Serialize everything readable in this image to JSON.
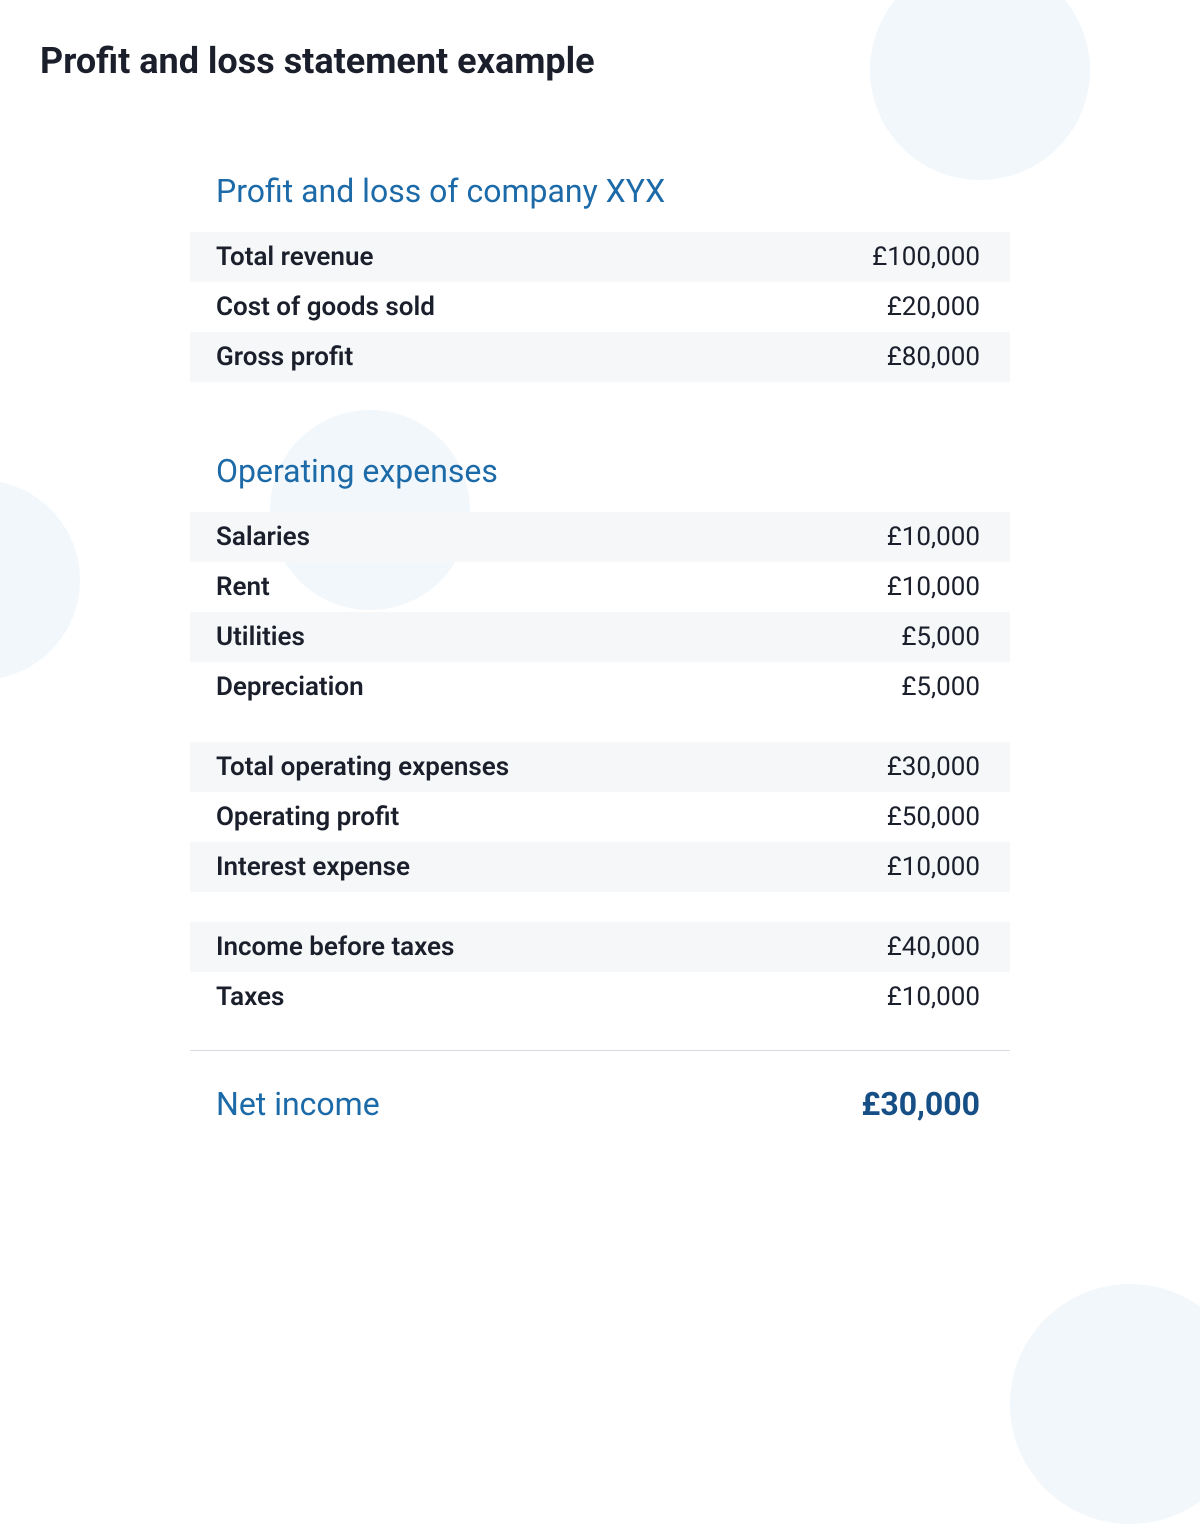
{
  "colors": {
    "heading_blue": "#1c6aa8",
    "text_dark": "#1a1f2b",
    "row_shade": "#f5f7f9",
    "divider": "#d6dbe1",
    "bg_circle": "#f2f7fb",
    "net_value": "#164f86"
  },
  "page_title": "Profit and loss statement example",
  "section1": {
    "title": "Profit and loss of company XYX",
    "rows": [
      {
        "label": "Total revenue",
        "value": "£100,000",
        "shaded": true
      },
      {
        "label": "Cost of goods sold",
        "value": "£20,000",
        "shaded": false
      },
      {
        "label": "Gross profit",
        "value": "£80,000",
        "shaded": true
      }
    ]
  },
  "section2": {
    "title": "Operating expenses",
    "group_a": [
      {
        "label": "Salaries",
        "value": "£10,000",
        "shaded": true
      },
      {
        "label": "Rent",
        "value": "£10,000",
        "shaded": false
      },
      {
        "label": "Utilities",
        "value": "£5,000",
        "shaded": true
      },
      {
        "label": "Depreciation",
        "value": "£5,000",
        "shaded": false
      }
    ],
    "group_b": [
      {
        "label": "Total operating expenses",
        "value": "£30,000",
        "shaded": true
      },
      {
        "label": "Operating profit",
        "value": "£50,000",
        "shaded": false
      },
      {
        "label": "Interest expense",
        "value": "£10,000",
        "shaded": true
      }
    ],
    "group_c": [
      {
        "label": "Income before taxes",
        "value": "£40,000",
        "shaded": true
      },
      {
        "label": "Taxes",
        "value": "£10,000",
        "shaded": false
      }
    ]
  },
  "net": {
    "label": "Net income",
    "value": "£30,000"
  }
}
